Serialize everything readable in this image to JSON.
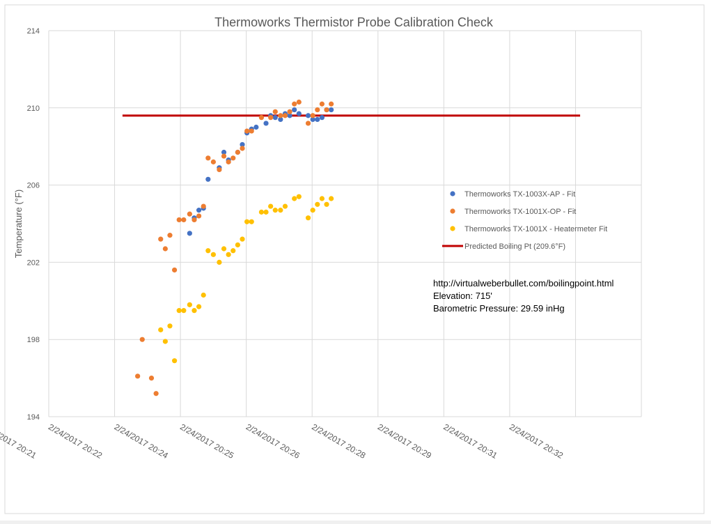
{
  "chart_data": {
    "type": "scatter",
    "title": "Thermoworks Thermistor Probe Calibration Check",
    "xlabel": "",
    "ylabel": "Temperature (°F)",
    "ylim": [
      194,
      214
    ],
    "yticks": [
      194,
      198,
      202,
      206,
      210,
      214
    ],
    "x_tick_labels": [
      "2/24/2017 20:21",
      "2/24/2017 20:22",
      "2/24/2017 20:24",
      "2/24/2017 20:25",
      "2/24/2017 20:26",
      "2/24/2017 20:28",
      "2/24/2017 20:29",
      "2/24/2017 20:31",
      "2/24/2017 20:32"
    ],
    "grid": true,
    "legend_position": "right",
    "series": [
      {
        "name": "Thermoworks TX-1003X-AP - Fit",
        "color": "#4472C4",
        "points": [
          [
            2.14,
            203.5
          ],
          [
            2.21,
            204.3
          ],
          [
            2.28,
            204.7
          ],
          [
            2.35,
            204.8
          ],
          [
            2.42,
            206.3
          ],
          [
            2.59,
            206.9
          ],
          [
            2.66,
            207.7
          ],
          [
            2.73,
            207.3
          ],
          [
            2.87,
            207.7
          ],
          [
            2.94,
            208.1
          ],
          [
            3.01,
            208.7
          ],
          [
            3.08,
            208.9
          ],
          [
            3.15,
            209.0
          ],
          [
            3.3,
            209.2
          ],
          [
            3.37,
            209.6
          ],
          [
            3.44,
            209.5
          ],
          [
            3.52,
            209.4
          ],
          [
            3.59,
            209.7
          ],
          [
            3.66,
            209.6
          ],
          [
            3.73,
            209.9
          ],
          [
            3.8,
            209.7
          ],
          [
            3.94,
            209.6
          ],
          [
            4.01,
            209.4
          ],
          [
            4.08,
            209.4
          ],
          [
            4.15,
            209.5
          ],
          [
            4.22,
            209.9
          ],
          [
            4.29,
            209.9
          ]
        ]
      },
      {
        "name": "Thermoworks TX-1001X-OP - Fit",
        "color": "#ED7D31",
        "points": [
          [
            1.35,
            196.1
          ],
          [
            1.42,
            198.0
          ],
          [
            1.56,
            196.0
          ],
          [
            1.63,
            195.2
          ],
          [
            1.7,
            203.2
          ],
          [
            1.77,
            202.7
          ],
          [
            1.84,
            203.4
          ],
          [
            1.91,
            201.6
          ],
          [
            1.98,
            204.2
          ],
          [
            2.05,
            204.2
          ],
          [
            2.14,
            204.5
          ],
          [
            2.21,
            204.2
          ],
          [
            2.28,
            204.4
          ],
          [
            2.35,
            204.9
          ],
          [
            2.42,
            207.4
          ],
          [
            2.5,
            207.2
          ],
          [
            2.59,
            206.8
          ],
          [
            2.66,
            207.5
          ],
          [
            2.73,
            207.2
          ],
          [
            2.8,
            207.4
          ],
          [
            2.87,
            207.7
          ],
          [
            2.94,
            207.9
          ],
          [
            3.01,
            208.8
          ],
          [
            3.08,
            208.8
          ],
          [
            3.23,
            209.5
          ],
          [
            3.37,
            209.5
          ],
          [
            3.44,
            209.8
          ],
          [
            3.52,
            209.6
          ],
          [
            3.59,
            209.6
          ],
          [
            3.66,
            209.8
          ],
          [
            3.73,
            210.2
          ],
          [
            3.8,
            210.3
          ],
          [
            3.94,
            209.2
          ],
          [
            4.01,
            209.6
          ],
          [
            4.08,
            209.9
          ],
          [
            4.15,
            210.2
          ],
          [
            4.22,
            209.9
          ],
          [
            4.29,
            210.2
          ]
        ]
      },
      {
        "name": "Thermoworks TX-1001X - Heatermeter Fit",
        "color": "#FFC000",
        "points": [
          [
            1.7,
            198.5
          ],
          [
            1.77,
            197.9
          ],
          [
            1.84,
            198.7
          ],
          [
            1.91,
            196.9
          ],
          [
            1.98,
            199.5
          ],
          [
            2.05,
            199.5
          ],
          [
            2.14,
            199.8
          ],
          [
            2.21,
            199.5
          ],
          [
            2.28,
            199.7
          ],
          [
            2.35,
            200.3
          ],
          [
            2.42,
            202.6
          ],
          [
            2.5,
            202.4
          ],
          [
            2.59,
            202.0
          ],
          [
            2.66,
            202.7
          ],
          [
            2.73,
            202.4
          ],
          [
            2.8,
            202.6
          ],
          [
            2.87,
            202.9
          ],
          [
            2.94,
            203.2
          ],
          [
            3.01,
            204.1
          ],
          [
            3.08,
            204.1
          ],
          [
            3.23,
            204.6
          ],
          [
            3.3,
            204.6
          ],
          [
            3.37,
            204.9
          ],
          [
            3.44,
            204.7
          ],
          [
            3.52,
            204.7
          ],
          [
            3.59,
            204.9
          ],
          [
            3.73,
            205.3
          ],
          [
            3.8,
            205.4
          ],
          [
            3.94,
            204.3
          ],
          [
            4.01,
            204.7
          ],
          [
            4.08,
            205.0
          ],
          [
            4.15,
            205.3
          ],
          [
            4.22,
            205.0
          ],
          [
            4.29,
            205.3
          ]
        ]
      }
    ],
    "reference_line": {
      "name": "Predicted Boiling Pt (209.6°F)",
      "color": "#C00000",
      "y": 209.6,
      "x_range": [
        1.12,
        8.07
      ]
    },
    "x_index_note": "x values are positions in tick-interval units along the time axis (0 = 2/24/2017 20:21)"
  },
  "annotation": {
    "url": "http://virtualweberbullet.com/boilingpoint.html",
    "elevation": "Elevation: 715'",
    "pressure": "Barometric Pressure: 29.59 inHg"
  }
}
